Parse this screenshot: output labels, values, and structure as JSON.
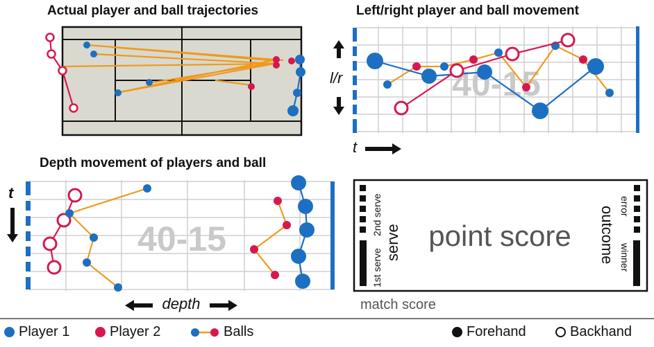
{
  "colors": {
    "player1": "#1d6fc1",
    "player2": "#d6184f",
    "ball": "#ef9a1d",
    "court": "#d9d9cf",
    "grid": "#cfcfcf",
    "score_watermark": "#c9c9c9"
  },
  "panels": {
    "trajectories": {
      "title": "Actual player and ball trajectories"
    },
    "lr": {
      "title": "Left/right player and ball movement",
      "axis_lr": "l/r",
      "axis_t": "t",
      "score": "40-15"
    },
    "depth": {
      "title": "Depth movement of players and ball",
      "axis_t": "t",
      "axis_depth": "depth",
      "score": "40-15"
    },
    "glyph": {
      "center": "point score",
      "left_main": "serve",
      "left_top": "2nd serve",
      "left_bottom": "1st serve",
      "right_main": "outcome",
      "right_top": "error",
      "right_bottom": "winner",
      "bottom": "match score"
    }
  },
  "legend": {
    "player1": "Player 1",
    "player2": "Player 2",
    "balls": "Balls",
    "forehand": "Forehand",
    "backhand": "Backhand"
  }
}
